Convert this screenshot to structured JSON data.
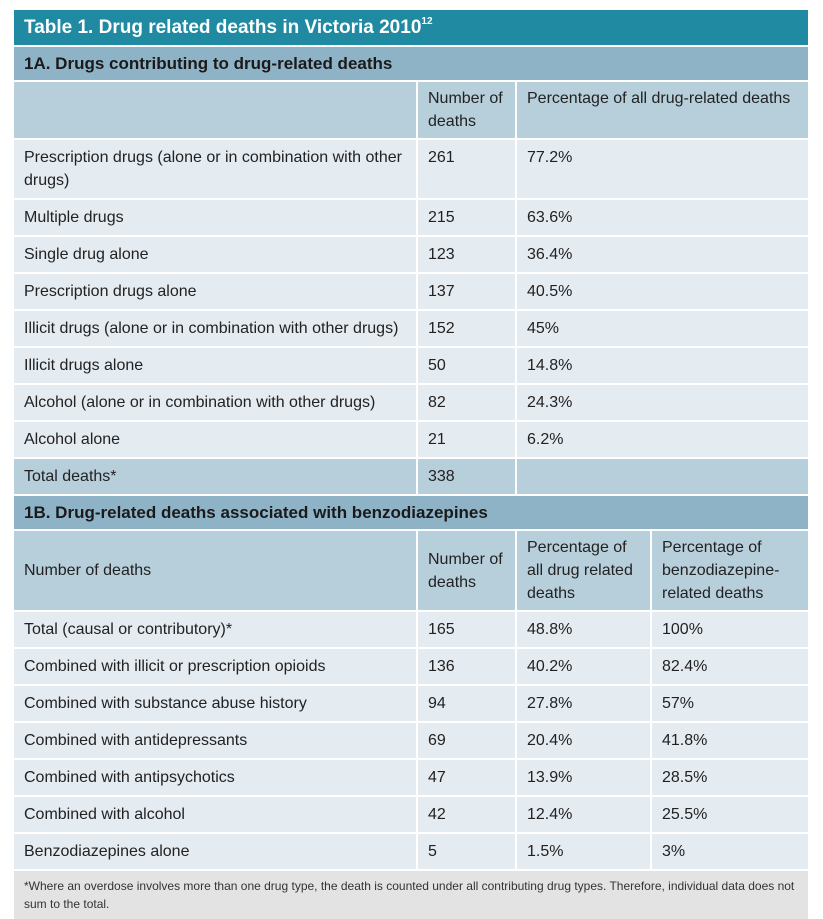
{
  "title": {
    "text": "Table 1. Drug related deaths in Victoria 2010",
    "superscript": "12"
  },
  "section_a": {
    "heading": "1A. Drugs contributing to drug-related deaths",
    "columns": [
      "",
      "Number of deaths",
      "Percentage of all drug-related deaths"
    ],
    "rows": [
      [
        "Prescription drugs (alone or in combination with other drugs)",
        "261",
        "77.2%"
      ],
      [
        "Multiple drugs",
        "215",
        "63.6%"
      ],
      [
        "Single drug alone",
        "123",
        "36.4%"
      ],
      [
        "Prescription drugs alone",
        "137",
        "40.5%"
      ],
      [
        "Illicit drugs (alone or in combination with other drugs)",
        "152",
        "45%"
      ],
      [
        "Illicit drugs alone",
        "50",
        "14.8%"
      ],
      [
        "Alcohol (alone or in combination with other drugs)",
        "82",
        "24.3%"
      ],
      [
        "Alcohol alone",
        "21",
        "6.2%"
      ]
    ],
    "total": [
      "Total deaths*",
      "338",
      ""
    ]
  },
  "section_b": {
    "heading": "1B. Drug-related deaths associated with benzodiazepines",
    "columns": [
      "Number of deaths",
      "Number of deaths",
      "Percentage of all drug related deaths",
      "Percentage of benzodiazepine-related deaths"
    ],
    "rows": [
      [
        "Total (causal or contributory)*",
        "165",
        "48.8%",
        "100%"
      ],
      [
        "Combined with illicit or prescription opioids",
        "136",
        "40.2%",
        "82.4%"
      ],
      [
        "Combined with substance abuse history",
        "94",
        "27.8%",
        "57%"
      ],
      [
        "Combined with antidepressants",
        "69",
        "20.4%",
        "41.8%"
      ],
      [
        "Combined with antipsychotics",
        "47",
        "13.9%",
        "28.5%"
      ],
      [
        "Combined with alcohol",
        "42",
        "12.4%",
        "25.5%"
      ],
      [
        "Benzodiazepines alone",
        "5",
        "1.5%",
        "3%"
      ]
    ]
  },
  "footnote": "*Where an overdose involves more than one drug type, the death is counted under all contributing drug types. Therefore, individual data does not sum to the total.",
  "colors": {
    "title_bar": "#1f8aa1",
    "section_bar": "#8fb3c6",
    "header_cell": "#b7cedb",
    "body_cell": "#e4ebf1",
    "footnote_bg": "#e3e3e3"
  }
}
